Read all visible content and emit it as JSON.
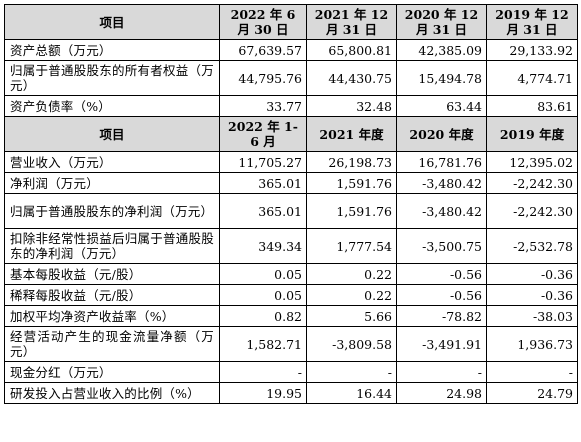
{
  "section1": {
    "headers": [
      "项目",
      "2022 年 6 月 30 日",
      "2021 年 12 月 31 日",
      "2020 年 12 月 31 日",
      "2019 年 12 月 31 日"
    ],
    "rows": [
      {
        "label": "资产总额（万元）",
        "values": [
          "67,639.57",
          "65,800.81",
          "42,385.09",
          "29,133.92"
        ]
      },
      {
        "label": "归属于普通股股东的所有者权益（万元）",
        "values": [
          "44,795.76",
          "44,430.75",
          "15,494.78",
          "4,774.71"
        ]
      },
      {
        "label": "资产负债率（%）",
        "values": [
          "33.77",
          "32.48",
          "63.44",
          "83.61"
        ]
      }
    ]
  },
  "section2": {
    "headers": [
      "项目",
      "2022 年 1-6 月",
      "2021 年度",
      "2020 年度",
      "2019 年度"
    ],
    "rows": [
      {
        "label": "营业收入（万元）",
        "values": [
          "11,705.27",
          "26,198.73",
          "16,781.76",
          "12,395.02"
        ]
      },
      {
        "label": "净利润（万元）",
        "values": [
          "365.01",
          "1,591.76",
          "-3,480.42",
          "-2,242.30"
        ]
      },
      {
        "label": "归属于普通股股东的净利润（万元）",
        "values": [
          "365.01",
          "1,591.76",
          "-3,480.42",
          "-2,242.30"
        ]
      },
      {
        "label": "扣除非经常性损益后归属于普通股股东的净利润（万元）",
        "values": [
          "349.34",
          "1,777.54",
          "-3,500.75",
          "-2,532.78"
        ]
      },
      {
        "label": "基本每股收益（元/股）",
        "values": [
          "0.05",
          "0.22",
          "-0.56",
          "-0.36"
        ]
      },
      {
        "label": "稀释每股收益（元/股）",
        "values": [
          "0.05",
          "0.22",
          "-0.56",
          "-0.36"
        ]
      },
      {
        "label": "加权平均净资产收益率（%）",
        "values": [
          "0.82",
          "5.66",
          "-78.82",
          "-38.03"
        ]
      },
      {
        "label": "经营活动产生的现金流量净额（万元）",
        "values": [
          "1,582.71",
          "-3,809.58",
          "-3,491.91",
          "1,936.73"
        ]
      },
      {
        "label": "现金分红（万元）",
        "values": [
          "-",
          "-",
          "-",
          "-"
        ]
      },
      {
        "label": "研发投入占营业收入的比例（%）",
        "values": [
          "19.95",
          "16.44",
          "24.98",
          "24.79"
        ]
      }
    ]
  }
}
